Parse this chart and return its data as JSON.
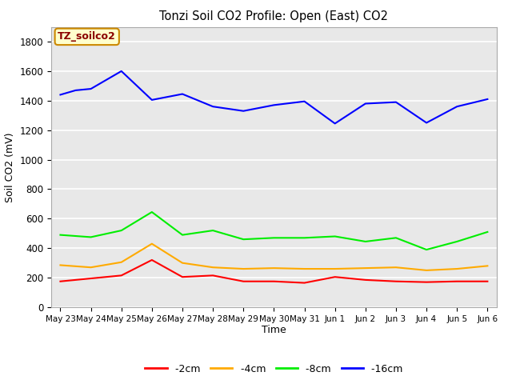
{
  "title": "Tonzi Soil CO2 Profile: Open (East) CO2",
  "xlabel": "Time",
  "ylabel": "Soil CO2 (mV)",
  "ylim": [
    0,
    1900
  ],
  "yticks": [
    0,
    200,
    400,
    600,
    800,
    1000,
    1200,
    1400,
    1600,
    1800
  ],
  "x_labels": [
    "May 23",
    "May 24",
    "May 25",
    "May 26",
    "May 27",
    "May 28",
    "May 29",
    "May 30",
    "May 31",
    "Jun 1",
    "Jun 2",
    "Jun 3",
    "Jun 4",
    "Jun 5",
    "Jun 6"
  ],
  "series": {
    "-2cm": {
      "color": "#ff0000",
      "values": [
        175,
        195,
        215,
        320,
        205,
        215,
        175,
        175,
        165,
        205,
        185,
        175,
        170,
        175,
        175
      ]
    },
    "-4cm": {
      "color": "#ffaa00",
      "values": [
        285,
        270,
        305,
        430,
        300,
        270,
        260,
        265,
        260,
        260,
        265,
        270,
        250,
        260,
        280
      ]
    },
    "-8cm": {
      "color": "#00ee00",
      "values": [
        490,
        475,
        520,
        645,
        490,
        520,
        460,
        470,
        470,
        480,
        445,
        470,
        390,
        445,
        510
      ]
    },
    "-16cm": {
      "color": "#0000ff",
      "values": [
        1440,
        1470,
        1480,
        1600,
        1405,
        1445,
        1360,
        1330,
        1370,
        1395,
        1245,
        1380,
        1390,
        1250,
        1360,
        1410
      ]
    }
  },
  "x_points_16": [
    0,
    0.5,
    1,
    2,
    3,
    4,
    5,
    6,
    7,
    8,
    9,
    10,
    11,
    12,
    13,
    14
  ],
  "background_color": "#e8e8e8",
  "grid_color": "#ffffff",
  "annotation_text": "TZ_soilco2",
  "annotation_bg": "#ffffcc",
  "annotation_border": "#cc8800",
  "fig_width": 6.4,
  "fig_height": 4.8,
  "dpi": 100
}
